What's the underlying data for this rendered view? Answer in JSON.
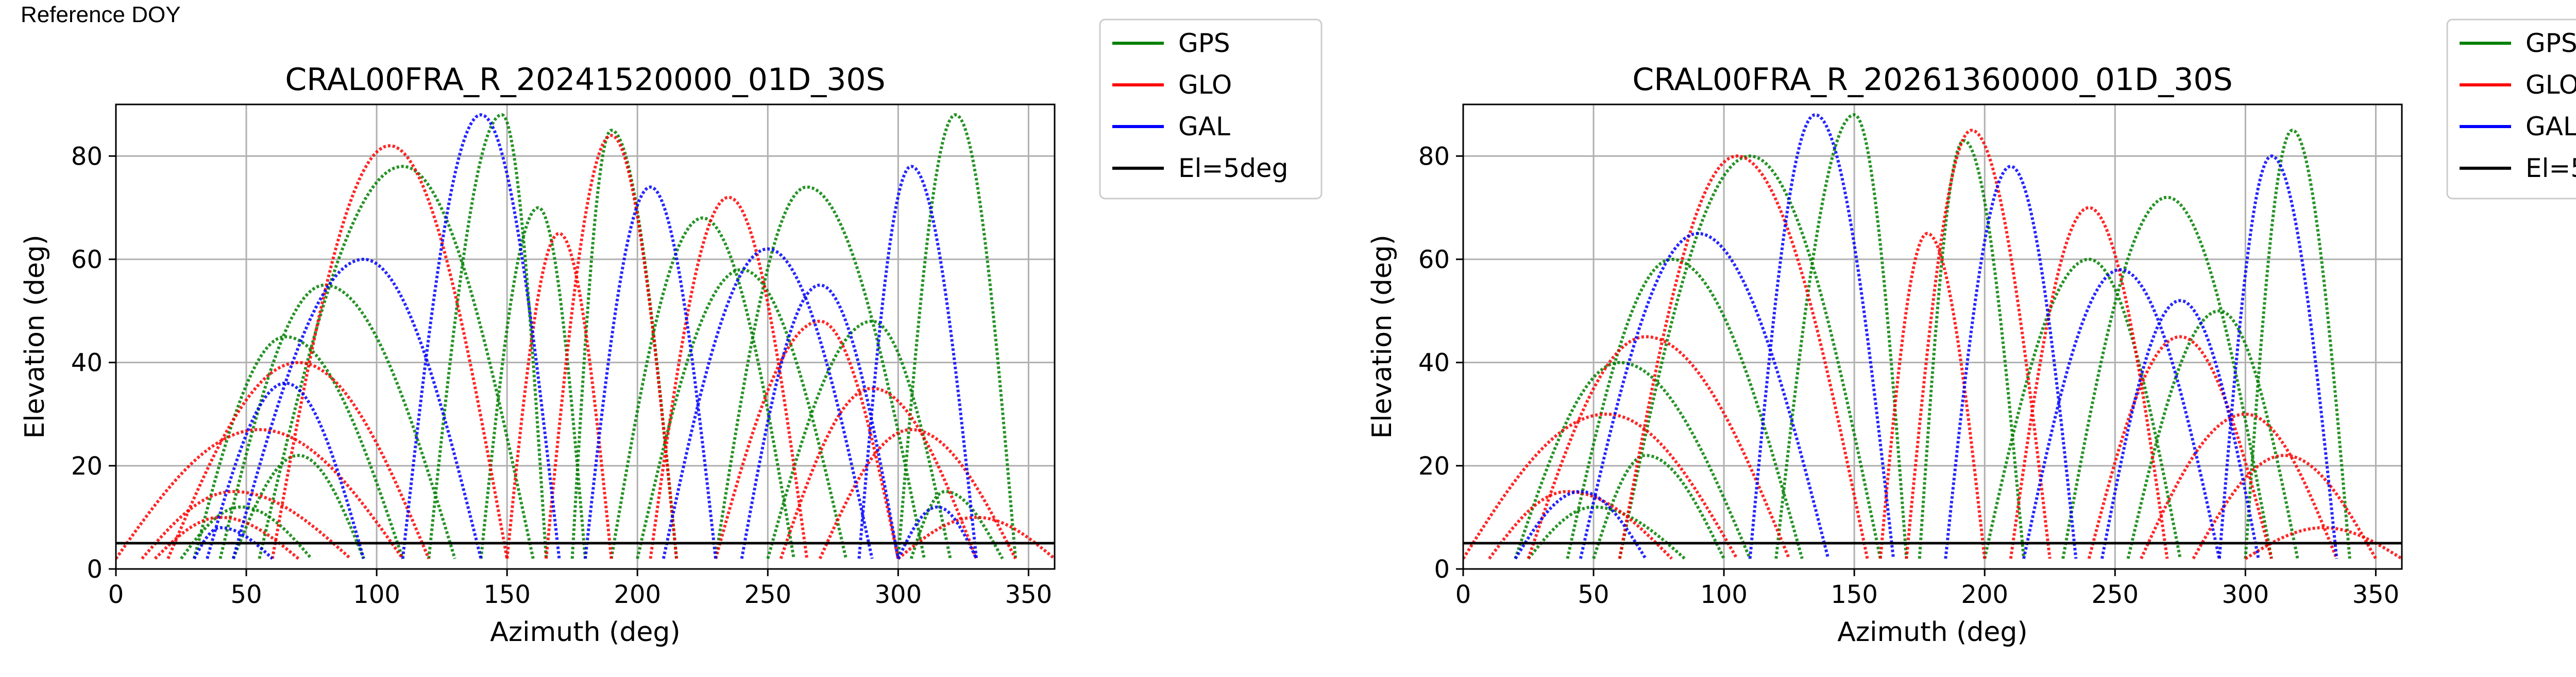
{
  "page": {
    "label": "Reference DOY"
  },
  "colors": {
    "GPS": "#008000",
    "GLO": "#ff0000",
    "GAL": "#0000ff",
    "El=5deg": "#000000"
  },
  "legend_entries": [
    "GPS",
    "GLO",
    "GAL",
    "El=5deg"
  ],
  "chart_data": [
    {
      "type": "scatter",
      "title": "CRAL00FRA_R_20241520000_01D_30S",
      "xlabel": "Azimuth (deg)",
      "ylabel": "Elevation (deg)",
      "xlim": [
        0,
        360
      ],
      "ylim": [
        0,
        90
      ],
      "xticks": [
        0,
        50,
        100,
        150,
        200,
        250,
        300,
        350
      ],
      "yticks": [
        0,
        20,
        40,
        60,
        80
      ],
      "grid": true,
      "legend_placement": "outside-right",
      "reference_line": {
        "name": "El=5deg",
        "y": 5
      },
      "series": [
        {
          "name": "GPS",
          "tracks": [
            {
              "start_az": 30,
              "end_az": 110,
              "peak_az": 65,
              "peak_el": 45
            },
            {
              "start_az": 40,
              "end_az": 130,
              "peak_az": 80,
              "peak_el": 55
            },
            {
              "start_az": 45,
              "end_az": 95,
              "peak_az": 70,
              "peak_el": 22
            },
            {
              "start_az": 55,
              "end_az": 160,
              "peak_az": 110,
              "peak_el": 78
            },
            {
              "start_az": 120,
              "end_az": 165,
              "peak_az": 148,
              "peak_el": 88
            },
            {
              "start_az": 140,
              "end_az": 180,
              "peak_az": 162,
              "peak_el": 70
            },
            {
              "start_az": 175,
              "end_az": 215,
              "peak_az": 190,
              "peak_el": 85
            },
            {
              "start_az": 190,
              "end_az": 260,
              "peak_az": 225,
              "peak_el": 68
            },
            {
              "start_az": 200,
              "end_az": 280,
              "peak_az": 240,
              "peak_el": 58
            },
            {
              "start_az": 230,
              "end_az": 310,
              "peak_az": 265,
              "peak_el": 74
            },
            {
              "start_az": 250,
              "end_az": 320,
              "peak_az": 290,
              "peak_el": 48
            },
            {
              "start_az": 300,
              "end_az": 345,
              "peak_az": 322,
              "peak_el": 88
            },
            {
              "start_az": 305,
              "end_az": 340,
              "peak_az": 318,
              "peak_el": 15
            },
            {
              "start_az": 25,
              "end_az": 75,
              "peak_az": 48,
              "peak_el": 12
            }
          ]
        },
        {
          "name": "GLO",
          "tracks": [
            {
              "start_az": 0,
              "end_az": 110,
              "peak_az": 55,
              "peak_el": 27
            },
            {
              "start_az": 10,
              "end_az": 90,
              "peak_az": 45,
              "peak_el": 15
            },
            {
              "start_az": 20,
              "end_az": 120,
              "peak_az": 70,
              "peak_el": 40
            },
            {
              "start_az": 60,
              "end_az": 150,
              "peak_az": 105,
              "peak_el": 82
            },
            {
              "start_az": 150,
              "end_az": 190,
              "peak_az": 170,
              "peak_el": 65
            },
            {
              "start_az": 165,
              "end_az": 215,
              "peak_az": 190,
              "peak_el": 84
            },
            {
              "start_az": 205,
              "end_az": 265,
              "peak_az": 235,
              "peak_el": 72
            },
            {
              "start_az": 230,
              "end_az": 300,
              "peak_az": 270,
              "peak_el": 48
            },
            {
              "start_az": 255,
              "end_az": 330,
              "peak_az": 290,
              "peak_el": 35
            },
            {
              "start_az": 270,
              "end_az": 345,
              "peak_az": 305,
              "peak_el": 27
            },
            {
              "start_az": 300,
              "end_az": 360,
              "peak_az": 330,
              "peak_el": 10
            },
            {
              "start_az": 15,
              "end_az": 70,
              "peak_az": 40,
              "peak_el": 10
            }
          ]
        },
        {
          "name": "GAL",
          "tracks": [
            {
              "start_az": 35,
              "end_az": 95,
              "peak_az": 65,
              "peak_el": 36
            },
            {
              "start_az": 45,
              "end_az": 140,
              "peak_az": 95,
              "peak_el": 60
            },
            {
              "start_az": 110,
              "end_az": 170,
              "peak_az": 140,
              "peak_el": 88
            },
            {
              "start_az": 180,
              "end_az": 230,
              "peak_az": 205,
              "peak_el": 74
            },
            {
              "start_az": 210,
              "end_az": 290,
              "peak_az": 250,
              "peak_el": 62
            },
            {
              "start_az": 240,
              "end_az": 300,
              "peak_az": 270,
              "peak_el": 55
            },
            {
              "start_az": 285,
              "end_az": 330,
              "peak_az": 305,
              "peak_el": 78
            },
            {
              "start_az": 300,
              "end_az": 330,
              "peak_az": 315,
              "peak_el": 12
            },
            {
              "start_az": 30,
              "end_az": 60,
              "peak_az": 40,
              "peak_el": 8
            }
          ]
        }
      ]
    },
    {
      "type": "scatter",
      "title": "CRAL00FRA_R_20261360000_01D_30S",
      "xlabel": "Azimuth (deg)",
      "ylabel": "Elevation (deg)",
      "xlim": [
        0,
        360
      ],
      "ylim": [
        0,
        90
      ],
      "xticks": [
        0,
        50,
        100,
        150,
        200,
        250,
        300,
        350
      ],
      "yticks": [
        0,
        20,
        40,
        60,
        80
      ],
      "grid": true,
      "legend_placement": "outside-right",
      "reference_line": {
        "name": "El=5deg",
        "y": 5
      },
      "series": [
        {
          "name": "GPS",
          "tracks": [
            {
              "start_az": 20,
              "end_az": 110,
              "peak_az": 60,
              "peak_el": 40
            },
            {
              "start_az": 40,
              "end_az": 130,
              "peak_az": 80,
              "peak_el": 60
            },
            {
              "start_az": 50,
              "end_az": 100,
              "peak_az": 70,
              "peak_el": 22
            },
            {
              "start_az": 60,
              "end_az": 160,
              "peak_az": 110,
              "peak_el": 80
            },
            {
              "start_az": 120,
              "end_az": 170,
              "peak_az": 150,
              "peak_el": 88
            },
            {
              "start_az": 175,
              "end_az": 215,
              "peak_az": 192,
              "peak_el": 83
            },
            {
              "start_az": 200,
              "end_az": 275,
              "peak_az": 240,
              "peak_el": 60
            },
            {
              "start_az": 230,
              "end_az": 310,
              "peak_az": 270,
              "peak_el": 72
            },
            {
              "start_az": 255,
              "end_az": 320,
              "peak_az": 290,
              "peak_el": 50
            },
            {
              "start_az": 300,
              "end_az": 340,
              "peak_az": 318,
              "peak_el": 85
            },
            {
              "start_az": 25,
              "end_az": 85,
              "peak_az": 50,
              "peak_el": 12
            }
          ]
        },
        {
          "name": "GLO",
          "tracks": [
            {
              "start_az": 0,
              "end_az": 105,
              "peak_az": 55,
              "peak_el": 30
            },
            {
              "start_az": 10,
              "end_az": 80,
              "peak_az": 40,
              "peak_el": 15
            },
            {
              "start_az": 25,
              "end_az": 125,
              "peak_az": 70,
              "peak_el": 45
            },
            {
              "start_az": 60,
              "end_az": 155,
              "peak_az": 105,
              "peak_el": 80
            },
            {
              "start_az": 160,
              "end_az": 200,
              "peak_az": 178,
              "peak_el": 65
            },
            {
              "start_az": 170,
              "end_az": 225,
              "peak_az": 195,
              "peak_el": 85
            },
            {
              "start_az": 210,
              "end_az": 270,
              "peak_az": 240,
              "peak_el": 70
            },
            {
              "start_az": 240,
              "end_az": 310,
              "peak_az": 275,
              "peak_el": 45
            },
            {
              "start_az": 260,
              "end_az": 335,
              "peak_az": 300,
              "peak_el": 30
            },
            {
              "start_az": 280,
              "end_az": 350,
              "peak_az": 315,
              "peak_el": 22
            },
            {
              "start_az": 300,
              "end_az": 360,
              "peak_az": 330,
              "peak_el": 8
            }
          ]
        },
        {
          "name": "GAL",
          "tracks": [
            {
              "start_az": 20,
              "end_az": 70,
              "peak_az": 45,
              "peak_el": 15
            },
            {
              "start_az": 45,
              "end_az": 140,
              "peak_az": 90,
              "peak_el": 65
            },
            {
              "start_az": 110,
              "end_az": 165,
              "peak_az": 135,
              "peak_el": 88
            },
            {
              "start_az": 185,
              "end_az": 235,
              "peak_az": 210,
              "peak_el": 78
            },
            {
              "start_az": 215,
              "end_az": 290,
              "peak_az": 252,
              "peak_el": 58
            },
            {
              "start_az": 245,
              "end_az": 305,
              "peak_az": 275,
              "peak_el": 52
            },
            {
              "start_az": 290,
              "end_az": 335,
              "peak_az": 310,
              "peak_el": 80
            }
          ]
        }
      ]
    }
  ]
}
